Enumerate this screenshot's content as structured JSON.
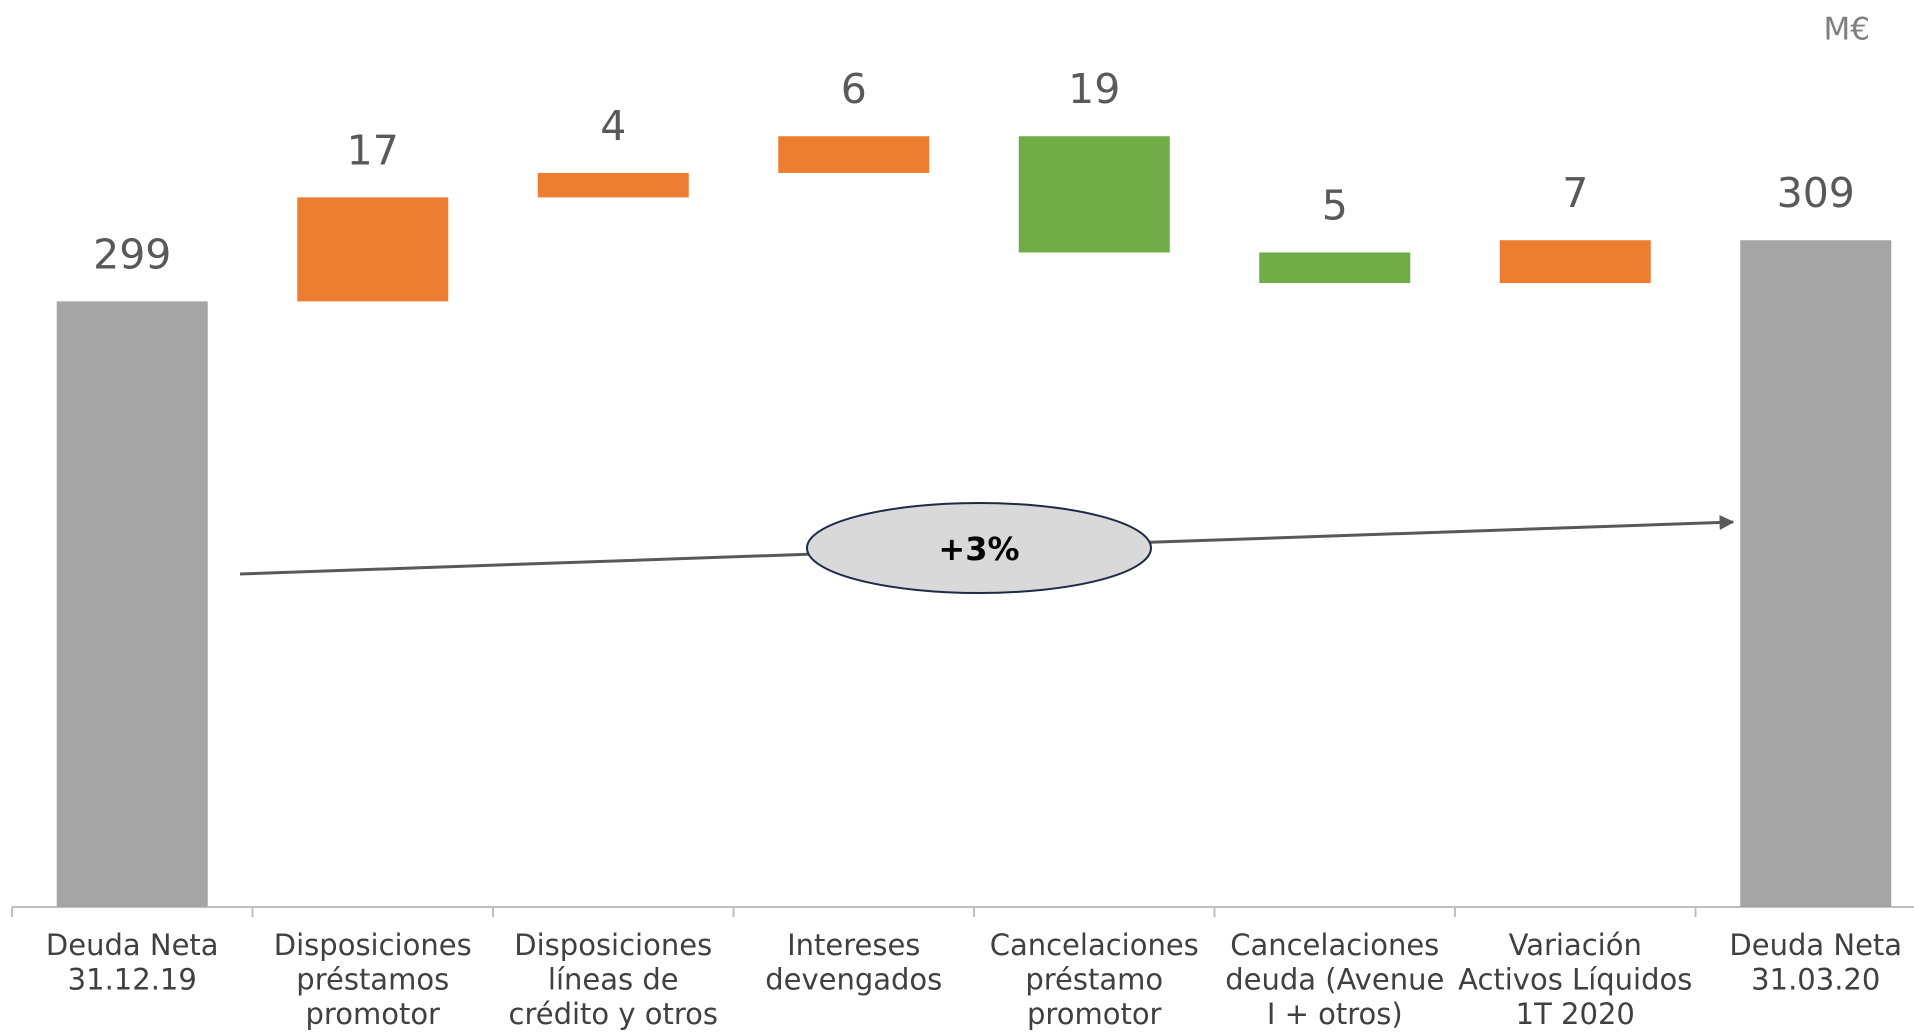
{
  "chart_data": {
    "type": "waterfall",
    "unit": "M€",
    "annotation": "+3%",
    "categories": [
      [
        "Deuda Neta",
        "31.12.19"
      ],
      [
        "Disposiciones",
        "préstamos",
        "promotor"
      ],
      [
        "Disposiciones",
        "líneas de",
        "crédito y otros"
      ],
      [
        "Intereses",
        "devengados"
      ],
      [
        "Cancelaciones",
        "préstamo",
        "promotor"
      ],
      [
        "Cancelaciones",
        "deuda (Avenue",
        "I + otros)"
      ],
      [
        "Variación",
        "Activos Líquidos",
        "1T 2020"
      ],
      [
        "Deuda Neta",
        "31.03.20"
      ]
    ],
    "values": [
      299,
      17,
      4,
      6,
      19,
      5,
      7,
      309
    ],
    "measure": [
      "total",
      "increase",
      "increase",
      "increase",
      "decrease",
      "decrease",
      "increase",
      "total"
    ],
    "colors": {
      "total": "#a5a5a5",
      "increase": "#ed7d31",
      "decrease": "#70ad47"
    },
    "ylim": [
      200,
      345
    ]
  }
}
